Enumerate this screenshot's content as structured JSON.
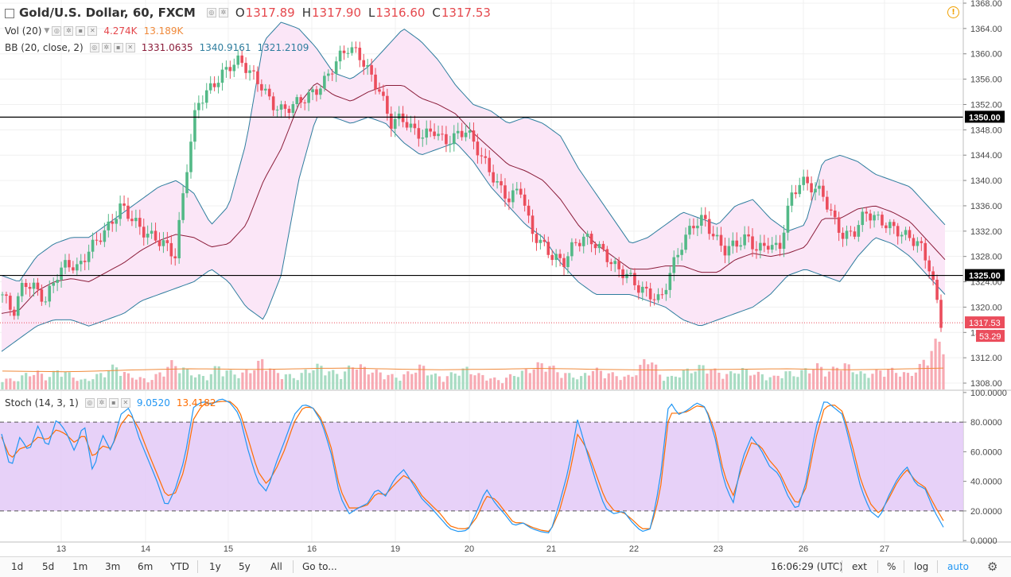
{
  "header": {
    "symbol": "Gold/U.S. Dollar, 60, FXCM",
    "open_label": "O",
    "open": "1317.89",
    "high_label": "H",
    "high": "1317.90",
    "low_label": "L",
    "low": "1316.60",
    "close_label": "C",
    "close": "1317.53"
  },
  "volume_legend": {
    "name": "Vol (20)",
    "value1": "4.274K",
    "value2": "13.189K"
  },
  "bb_legend": {
    "name": "BB (20, close, 2)",
    "basis": "1331.0635",
    "upper": "1340.9161",
    "lower": "1321.2109"
  },
  "stoch_legend": {
    "name": "Stoch (14, 3, 1)",
    "k": "9.0520",
    "d": "13.4182"
  },
  "colors": {
    "up": "#53b987",
    "down": "#eb4d5c",
    "bb_fill": "#fbe6f7",
    "bb_line": "#2e7d9e",
    "bb_basis": "#8b1d3a",
    "vol_up": "#a8dcc3",
    "vol_down": "#f7aab3",
    "vol_ma": "#f08a3b",
    "stoch_k": "#2196f3",
    "stoch_d": "#ff6d00",
    "stoch_band": "#e3c9f7",
    "last_price_tag": "#eb4d5c",
    "level_tag": "#000000"
  },
  "bottom_bar": {
    "timeframes": [
      "1d",
      "5d",
      "1m",
      "3m",
      "6m",
      "YTD",
      "1y",
      "5y",
      "All"
    ],
    "goto": "Go to...",
    "clock": "16:06:29 (UTC)",
    "ext": "ext",
    "percent": "%",
    "log": "log",
    "auto": "auto"
  },
  "icons": {
    "alert": "alert-clock-icon",
    "settings": "gear-icon",
    "collapse": "collapse-square-icon"
  },
  "chart_data": [
    {
      "type": "candlestick",
      "title": "Gold/U.S. Dollar, 60, FXCM",
      "x_tick_labels": [
        "13",
        "14",
        "15",
        "16",
        "19",
        "20",
        "21",
        "22",
        "23",
        "26",
        "27"
      ],
      "y_tick_labels": [
        "1308.00",
        "1312.00",
        "1316.00",
        "1320.00",
        "1324.00",
        "1328.00",
        "1332.00",
        "1336.00",
        "1340.00",
        "1344.00",
        "1348.00",
        "1352.00",
        "1356.00",
        "1360.00",
        "1364.00",
        "1368.00"
      ],
      "ylim": [
        1307,
        1368.5
      ],
      "horizontal_levels": [
        1350.0,
        1325.0
      ],
      "level_labels": [
        "1350.00",
        "1325.00"
      ],
      "last_price": 1317.53,
      "last_price_label": "1317.53",
      "stoch_tag_label": "53.29",
      "price_path": [
        1322,
        1319,
        1324,
        1323,
        1321,
        1325,
        1327,
        1326,
        1329,
        1331,
        1333,
        1336,
        1334,
        1332,
        1331,
        1330,
        1328,
        1341,
        1352,
        1354,
        1356,
        1358,
        1359,
        1357,
        1355,
        1352,
        1351,
        1352,
        1353,
        1354,
        1356,
        1359,
        1361,
        1360,
        1357,
        1354,
        1349,
        1350,
        1348,
        1347,
        1348,
        1346,
        1347,
        1348,
        1345,
        1342,
        1339,
        1337,
        1339,
        1332,
        1330,
        1328,
        1327,
        1330,
        1331,
        1330,
        1328,
        1326,
        1325,
        1323,
        1322,
        1321,
        1326,
        1330,
        1333,
        1334,
        1331,
        1329,
        1330,
        1331,
        1329,
        1330,
        1329,
        1337,
        1340,
        1339,
        1338,
        1334,
        1331,
        1332,
        1335,
        1334,
        1333,
        1332,
        1331,
        1330,
        1326,
        1317.5
      ],
      "bb_upper_path": [
        1325,
        1324,
        1328,
        1330,
        1331,
        1331,
        1333,
        1335,
        1337,
        1339,
        1340,
        1338,
        1333,
        1336,
        1346,
        1362,
        1365,
        1364,
        1361,
        1357,
        1356,
        1358,
        1361,
        1364,
        1362,
        1359,
        1355,
        1352,
        1351,
        1349,
        1350,
        1349,
        1347,
        1342,
        1338,
        1334,
        1330,
        1331,
        1333,
        1335,
        1334,
        1333,
        1336,
        1337,
        1334,
        1332,
        1333,
        1343,
        1344,
        1343,
        1341,
        1340,
        1339,
        1336,
        1333
      ],
      "bb_lower_path": [
        1313,
        1315,
        1317,
        1318,
        1318,
        1317,
        1318,
        1319,
        1321,
        1322,
        1323,
        1324,
        1326,
        1324,
        1320,
        1318,
        1325,
        1340,
        1350,
        1350,
        1349,
        1350,
        1349,
        1346,
        1344,
        1345,
        1346,
        1343,
        1339,
        1336,
        1333,
        1331,
        1327,
        1324,
        1322,
        1322,
        1322,
        1321,
        1320,
        1318,
        1317,
        1318,
        1319,
        1320,
        1322,
        1325,
        1326,
        1325,
        1324,
        1328,
        1331,
        1330,
        1328,
        1325,
        1322
      ],
      "volume_path": [
        4,
        3,
        5,
        6,
        4,
        7,
        5,
        3,
        4,
        6,
        8,
        5,
        4,
        3,
        6,
        9,
        7,
        5,
        4,
        8,
        6,
        5,
        7,
        10,
        6,
        5,
        4,
        7,
        8,
        6,
        5,
        9,
        7,
        6,
        5,
        4,
        6,
        8,
        5,
        4,
        6,
        7,
        5,
        4,
        3,
        5,
        6,
        8,
        9,
        6,
        5,
        4,
        7,
        6,
        5,
        4,
        6,
        12,
        5,
        4,
        6,
        7,
        8,
        6,
        5,
        7,
        6,
        5,
        4,
        6,
        5,
        7,
        8,
        6,
        9,
        7,
        5,
        6,
        7,
        6,
        5,
        8,
        14,
        18
      ],
      "vol_ma_path": [
        5.5,
        5.4,
        5.3,
        5.5,
        5.8,
        6.0,
        6.2,
        6.1,
        6.0,
        6.1,
        6.3,
        6.4,
        6.2,
        6.0,
        5.9,
        6.0,
        6.1,
        6.3,
        6.2,
        6.0,
        5.9,
        5.8,
        5.9,
        6.0,
        6.1,
        6.2,
        6.0,
        5.9,
        6.0,
        6.2,
        6.4
      ],
      "stoch_k_path": [
        72,
        48,
        70,
        60,
        78,
        62,
        82,
        74,
        60,
        80,
        45,
        72,
        60,
        85,
        90,
        70,
        55,
        40,
        22,
        35,
        55,
        90,
        94,
        92,
        96,
        93,
        85,
        60,
        40,
        33,
        52,
        68,
        85,
        92,
        90,
        80,
        60,
        30,
        18,
        22,
        25,
        35,
        30,
        42,
        48,
        38,
        28,
        22,
        15,
        8,
        6,
        7,
        20,
        35,
        25,
        18,
        10,
        12,
        8,
        6,
        5,
        25,
        48,
        82,
        60,
        40,
        22,
        18,
        20,
        12,
        6,
        8,
        40,
        95,
        85,
        88,
        93,
        90,
        70,
        40,
        25,
        55,
        70,
        62,
        50,
        45,
        30,
        20,
        40,
        75,
        95,
        90,
        85,
        60,
        35,
        20,
        15,
        30,
        42,
        50,
        38,
        35,
        20,
        9
      ],
      "stoch_d_path": [
        70,
        55,
        62,
        64,
        70,
        68,
        75,
        72,
        66,
        72,
        56,
        64,
        62,
        78,
        86,
        76,
        60,
        45,
        30,
        32,
        48,
        82,
        92,
        93,
        94,
        94,
        88,
        68,
        47,
        38,
        48,
        62,
        80,
        90,
        90,
        82,
        64,
        35,
        22,
        22,
        24,
        32,
        31,
        38,
        44,
        40,
        30,
        24,
        18,
        10,
        8,
        8,
        16,
        30,
        28,
        20,
        12,
        12,
        9,
        7,
        6,
        20,
        42,
        72,
        62,
        45,
        28,
        20,
        19,
        14,
        8,
        8,
        32,
        86,
        86,
        87,
        91,
        90,
        74,
        45,
        30,
        50,
        66,
        64,
        54,
        47,
        34,
        24,
        36,
        68,
        90,
        92,
        87,
        65,
        40,
        25,
        18,
        28,
        40,
        48,
        40,
        36,
        24,
        13.4
      ],
      "stoch_y_tick_labels": [
        "0.0000",
        "20.0000",
        "40.0000",
        "60.0000",
        "80.0000",
        "100.0000"
      ],
      "stoch_bands": [
        20,
        80
      ],
      "stoch_ylim": [
        -1,
        101
      ]
    }
  ]
}
